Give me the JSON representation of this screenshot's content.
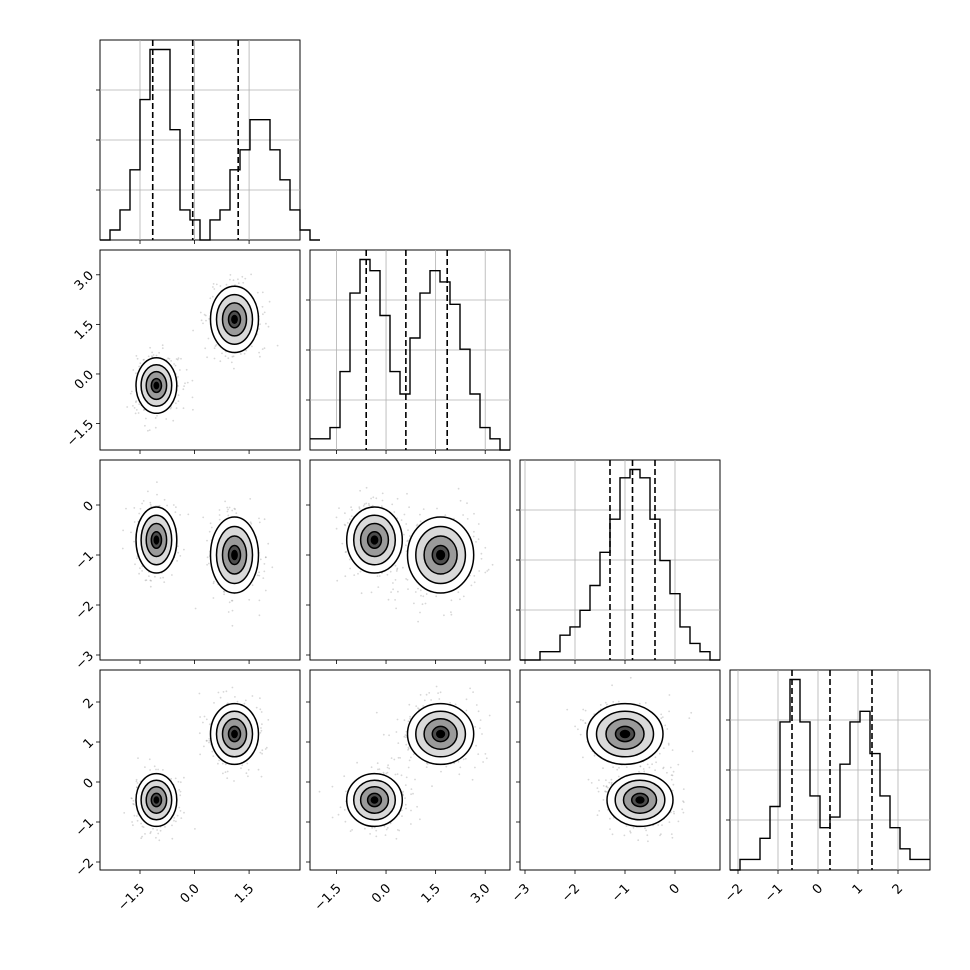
{
  "chart_data": {
    "type": "corner",
    "n_params": 4,
    "ranges": [
      [
        -2.6,
        2.9
      ],
      [
        -2.3,
        3.75
      ],
      [
        -3.1,
        0.9
      ],
      [
        -2.2,
        2.8
      ]
    ],
    "tick_values": [
      [
        -1.5,
        0.0,
        1.5
      ],
      [
        -1.5,
        0.0,
        1.5,
        3.0
      ],
      [
        -3,
        -2,
        -1,
        0
      ],
      [
        -2,
        -1,
        0,
        1,
        2
      ]
    ],
    "tick_labels": [
      [
        "−1.5",
        "0.0",
        "1.5"
      ],
      [
        "−1.5",
        "0.0",
        "1.5",
        "3.0"
      ],
      [
        "−3",
        "−2",
        "−1",
        "0"
      ],
      [
        "−2",
        "−1",
        "0",
        "1",
        "2"
      ]
    ],
    "quantiles": [
      [
        -1.15,
        -0.05,
        1.2
      ],
      [
        -0.6,
        0.6,
        1.85
      ],
      [
        -1.3,
        -0.85,
        -0.4
      ],
      [
        -0.65,
        0.3,
        1.35
      ]
    ],
    "histograms": [
      {
        "edges_start": -2.6,
        "bin_width": 0.275,
        "counts": [
          0,
          1,
          3,
          7,
          14,
          19,
          19,
          11,
          3,
          2,
          0,
          2,
          3,
          7,
          9,
          12,
          12,
          9,
          6,
          3,
          1,
          0
        ]
      },
      {
        "edges_start": -2.3,
        "bin_width": 0.3025,
        "counts": [
          1,
          1,
          2,
          7,
          14,
          17,
          16,
          12,
          7,
          5,
          10,
          14,
          16,
          15,
          13,
          9,
          5,
          2,
          1,
          0
        ]
      },
      {
        "edges_start": -3.1,
        "bin_width": 0.2,
        "counts": [
          0,
          0,
          1,
          1,
          3,
          4,
          6,
          9,
          13,
          17,
          22,
          23,
          22,
          17,
          12,
          8,
          4,
          2,
          1,
          0
        ]
      },
      {
        "edges_start": -2.2,
        "bin_width": 0.25,
        "counts": [
          0,
          1,
          1,
          3,
          6,
          14,
          18,
          14,
          7,
          4,
          5,
          10,
          14,
          15,
          11,
          7,
          4,
          2,
          1,
          1
        ]
      }
    ],
    "clusters": [
      {
        "weight": 0.5,
        "mean": [
          -1.05,
          -0.35,
          -0.7,
          -0.45
        ],
        "sigma": [
          0.28,
          0.42,
          0.33,
          0.33
        ]
      },
      {
        "weight": 0.5,
        "mean": [
          1.1,
          1.65,
          -1.0,
          1.2
        ],
        "sigma": [
          0.33,
          0.5,
          0.38,
          0.38
        ]
      }
    ],
    "xlabel": "",
    "ylabel": "",
    "title": "",
    "grid": true
  },
  "style": {
    "contour_color": "#000000",
    "scatter_color": "#8c8c8c",
    "density_color": "#000000",
    "grid_color": "#b0b0b0"
  }
}
